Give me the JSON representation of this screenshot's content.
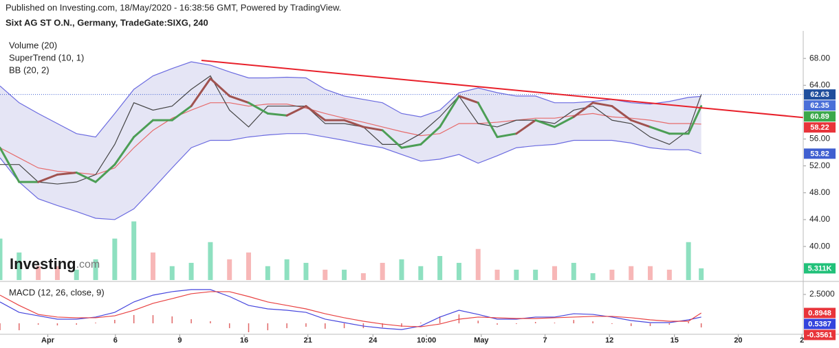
{
  "chart_data": [
    {
      "type": "line",
      "title": "Published on Investing.com, 18/May/2020 - 16:38:56 GMT, Powered by TradingView.",
      "subtitle": "Sixt AG ST O.N., Germany, TradeGate:SIXG, 240",
      "legend": [
        "Volume (20)",
        "SuperTrend (10, 1)",
        "BB (20, 2)"
      ],
      "watermark": [
        "Investing",
        ".com"
      ],
      "xlim": [
        0,
        126
      ],
      "ylim": [
        35,
        72.1
      ],
      "y2lim": [
        0,
        113
      ],
      "yticks": [
        {
          "value": 68,
          "label": "68.00"
        },
        {
          "value": 64,
          "label": "64.00"
        },
        {
          "value": 56,
          "label": "56.00"
        },
        {
          "value": 52,
          "label": "52.00"
        },
        {
          "value": 48,
          "label": "48.00"
        },
        {
          "value": 44,
          "label": "44.00"
        },
        {
          "value": 40,
          "label": "40.00"
        }
      ],
      "x": [
        0,
        3,
        6,
        9,
        12,
        15,
        18,
        21,
        24,
        27,
        30,
        33,
        36,
        39,
        42,
        45,
        48,
        51,
        54,
        57,
        60,
        63,
        66,
        69,
        72,
        75,
        78,
        81,
        84,
        87,
        90,
        93,
        96,
        99,
        102,
        105,
        108,
        110
      ],
      "series": [
        {
          "type": "bar",
          "axis": "y2",
          "colors": [
            "#8ee0c0",
            "#8ee0c0",
            "#f7b7b7",
            "#f7b7b7",
            "#8ee0c0",
            "#8ee0c0",
            "#8ee0c0",
            "#8ee0c0",
            "#f7b7b7",
            "#8ee0c0",
            "#8ee0c0",
            "#8ee0c0",
            "#f7b7b7",
            "#f7b7b7",
            "#8ee0c0",
            "#8ee0c0",
            "#8ee0c0",
            "#f7b7b7",
            "#8ee0c0",
            "#f7b7b7",
            "#f7b7b7",
            "#8ee0c0",
            "#8ee0c0",
            "#8ee0c0",
            "#8ee0c0",
            "#f7b7b7",
            "#f7b7b7",
            "#8ee0c0",
            "#8ee0c0",
            "#f7b7b7",
            "#8ee0c0",
            "#8ee0c0",
            "#f7b7b7",
            "#f7b7b7",
            "#f7b7b7",
            "#f7b7b7",
            "#8ee0c0",
            "#8ee0c0"
          ],
          "label_color": "#22c17a",
          "values": [
            18.8,
            12.5,
            6.3,
            6.3,
            4.7,
            9.4,
            18.8,
            26.6,
            12.5,
            6.3,
            7.8,
            17.2,
            9.4,
            12.5,
            6.3,
            9.4,
            7.8,
            4.7,
            4.7,
            3.1,
            7.8,
            9.4,
            6.3,
            10.9,
            7.8,
            14.1,
            4.7,
            4.7,
            4.7,
            6.3,
            7.8,
            3.1,
            4.7,
            6.3,
            6.3,
            4.7,
            17.2,
            5.311
          ],
          "value_labels": [
            null,
            null,
            null,
            null,
            null,
            null,
            null,
            null,
            null,
            null,
            null,
            null,
            null,
            null,
            null,
            null,
            null,
            null,
            null,
            null,
            null,
            null,
            null,
            null,
            null,
            null,
            null,
            null,
            null,
            null,
            null,
            null,
            null,
            null,
            null,
            null,
            null,
            "5.311K"
          ]
        },
        {
          "type": "line",
          "color": "#6a6ae0",
          "fill": "#dcdcf2",
          "label_color": "#4a6fd8",
          "values": [
            63.9,
            61.4,
            59.8,
            58.3,
            56.8,
            56.3,
            59.8,
            63.4,
            65.4,
            66.5,
            67.5,
            67.0,
            66.0,
            65.1,
            65.1,
            65.2,
            65.1,
            63.4,
            62.4,
            61.9,
            61.4,
            59.8,
            59.3,
            60.3,
            62.9,
            63.6,
            62.9,
            62.4,
            62.4,
            61.4,
            61.4,
            61.6,
            61.9,
            61.4,
            61.2,
            61.6,
            62.2,
            62.35
          ]
        },
        {
          "type": "line",
          "color": "#6a6ae0",
          "label_color": "#3f5fd0",
          "values": [
            53.2,
            49.6,
            47.1,
            46.1,
            45.2,
            44.2,
            44.0,
            45.6,
            48.6,
            51.7,
            54.7,
            55.8,
            55.8,
            56.3,
            56.6,
            56.8,
            56.8,
            56.3,
            55.8,
            55.2,
            54.7,
            53.7,
            52.7,
            53.0,
            53.7,
            52.4,
            53.5,
            54.7,
            55.0,
            55.2,
            55.8,
            55.8,
            55.8,
            55.4,
            54.7,
            54.4,
            54.4,
            53.82
          ]
        },
        {
          "type": "line",
          "color": "#e66a6a",
          "label_color": "#e8343a",
          "values": [
            54.7,
            53.2,
            51.7,
            51.2,
            51.0,
            50.7,
            51.7,
            54.7,
            57.3,
            59.1,
            60.3,
            61.4,
            61.4,
            60.9,
            61.2,
            61.2,
            60.6,
            59.8,
            59.1,
            58.5,
            57.8,
            57.1,
            56.5,
            56.8,
            58.3,
            58.3,
            58.5,
            58.8,
            59.1,
            59.1,
            59.5,
            59.8,
            59.3,
            59.1,
            58.8,
            58.3,
            58.3,
            58.22
          ]
        },
        {
          "type": "line",
          "color": "#444444",
          "last_line": "#3f5fd0",
          "label_color": "#1f4e9c",
          "values": [
            52.2,
            52.2,
            49.6,
            49.3,
            49.6,
            50.7,
            55.2,
            61.4,
            60.3,
            60.9,
            63.4,
            65.4,
            60.3,
            57.8,
            60.9,
            60.9,
            60.9,
            58.3,
            58.3,
            57.8,
            55.2,
            55.2,
            56.8,
            59.3,
            62.4,
            58.3,
            57.8,
            58.8,
            58.8,
            58.3,
            60.3,
            60.9,
            58.8,
            58.3,
            56.3,
            55.2,
            57.3,
            62.63
          ]
        },
        {
          "type": "segments",
          "label_color": "#3aa84a",
          "segment_colors": [
            "#a0524f",
            "#4c9e55",
            "#4c9e55",
            "#a0524f",
            "#a0524f",
            "#4c9e55",
            "#4c9e55",
            "#4c9e55",
            "#4c9e55",
            "#4c9e55",
            "#4c9e55",
            "#a0524f",
            "#a0524f",
            "#a0524f",
            "#4c9e55",
            "#4c9e55",
            "#a0524f",
            "#a0524f",
            "#a0524f",
            "#a0524f",
            "#a0524f",
            "#4c9e55",
            "#4c9e55",
            "#4c9e55",
            "#4c9e55",
            "#a0524f",
            "#4c9e55",
            "#4c9e55",
            "#a0524f",
            "#4c9e55",
            "#4c9e55",
            "#a0524f",
            "#a0524f",
            "#a0524f",
            "#a0524f",
            "#4c9e55",
            "#4c9e55",
            "#4c9e55"
          ],
          "values": [
            54.7,
            49.6,
            49.6,
            50.7,
            51.0,
            49.6,
            52.2,
            56.3,
            58.8,
            58.8,
            60.9,
            65.0,
            62.4,
            61.4,
            59.8,
            59.5,
            60.9,
            58.8,
            58.8,
            57.8,
            57.3,
            54.7,
            55.2,
            57.8,
            62.4,
            61.4,
            56.3,
            56.8,
            58.8,
            57.8,
            59.3,
            61.4,
            60.9,
            58.8,
            57.8,
            56.8,
            56.8,
            60.89
          ]
        },
        {
          "type": "line",
          "color": "#e8202a",
          "x": [
            31.6,
            126
          ],
          "values": [
            67.7,
            59.2
          ]
        }
      ]
    },
    {
      "type": "line",
      "legend": [
        "MACD (12, 26, close, 9)"
      ],
      "xlim": [
        0,
        126
      ],
      "ylim": [
        -0.83,
        3.33
      ],
      "yticks": [
        {
          "value": 2.5,
          "label": "2.5000"
        }
      ],
      "xticks": [
        {
          "value": 7.5,
          "label": "Apr"
        },
        {
          "value": 18.1,
          "label": "6"
        },
        {
          "value": 28.2,
          "label": "9"
        },
        {
          "value": 38.3,
          "label": "16"
        },
        {
          "value": 48.3,
          "label": "21"
        },
        {
          "value": 58.5,
          "label": "24"
        },
        {
          "value": 66.9,
          "label": "10:00"
        },
        {
          "value": 75.5,
          "label": "May"
        },
        {
          "value": 85.5,
          "label": "7"
        },
        {
          "value": 95.6,
          "label": "12"
        },
        {
          "value": 105.8,
          "label": "15"
        },
        {
          "value": 115.8,
          "label": "20"
        },
        {
          "value": 125.8,
          "label": "2"
        }
      ],
      "x": [
        0,
        3,
        6,
        9,
        12,
        15,
        18,
        21,
        24,
        27,
        30,
        33,
        36,
        39,
        42,
        45,
        48,
        51,
        54,
        57,
        60,
        63,
        66,
        69,
        72,
        75,
        78,
        81,
        84,
        87,
        90,
        93,
        96,
        99,
        102,
        105,
        108,
        110
      ],
      "series": [
        {
          "type": "hist",
          "color": "#e06666",
          "label_color": "#e8343a",
          "values": [
            -0.59,
            -0.6,
            -0.12,
            -0.18,
            -0.12,
            0.06,
            0.3,
            0.72,
            0.71,
            0.6,
            0.36,
            0.18,
            -0.42,
            -0.77,
            -0.6,
            -0.42,
            -0.3,
            -0.47,
            -0.42,
            -0.42,
            -0.36,
            -0.3,
            0.06,
            0.6,
            0.77,
            0.23,
            -0.12,
            -0.06,
            0.12,
            0.06,
            0.29,
            0.17,
            -0.06,
            -0.24,
            -0.24,
            -0.12,
            0.12,
            -0.3561
          ]
        },
        {
          "type": "line",
          "color": "#4444dd",
          "label_color": "#3344dd",
          "values": [
            1.85,
            0.95,
            0.65,
            0.36,
            0.36,
            0.54,
            0.95,
            1.85,
            2.44,
            2.74,
            2.92,
            2.92,
            2.32,
            1.55,
            1.25,
            1.13,
            0.95,
            0.36,
            0.06,
            -0.24,
            -0.42,
            -0.54,
            -0.24,
            0.54,
            1.13,
            0.77,
            0.36,
            0.36,
            0.54,
            0.54,
            0.83,
            0.77,
            0.54,
            0.24,
            0.06,
            0.06,
            0.3,
            0.5387
          ]
        },
        {
          "type": "line",
          "color": "#e84040",
          "label_color": "#e8343a",
          "values": [
            2.44,
            1.55,
            0.77,
            0.54,
            0.48,
            0.48,
            0.65,
            1.13,
            1.73,
            2.14,
            2.56,
            2.74,
            2.74,
            2.32,
            1.85,
            1.55,
            1.25,
            0.83,
            0.48,
            0.18,
            -0.06,
            -0.24,
            -0.3,
            -0.06,
            0.36,
            0.54,
            0.48,
            0.42,
            0.42,
            0.48,
            0.54,
            0.6,
            0.6,
            0.48,
            0.3,
            0.18,
            0.18,
            0.8948
          ]
        }
      ]
    }
  ]
}
